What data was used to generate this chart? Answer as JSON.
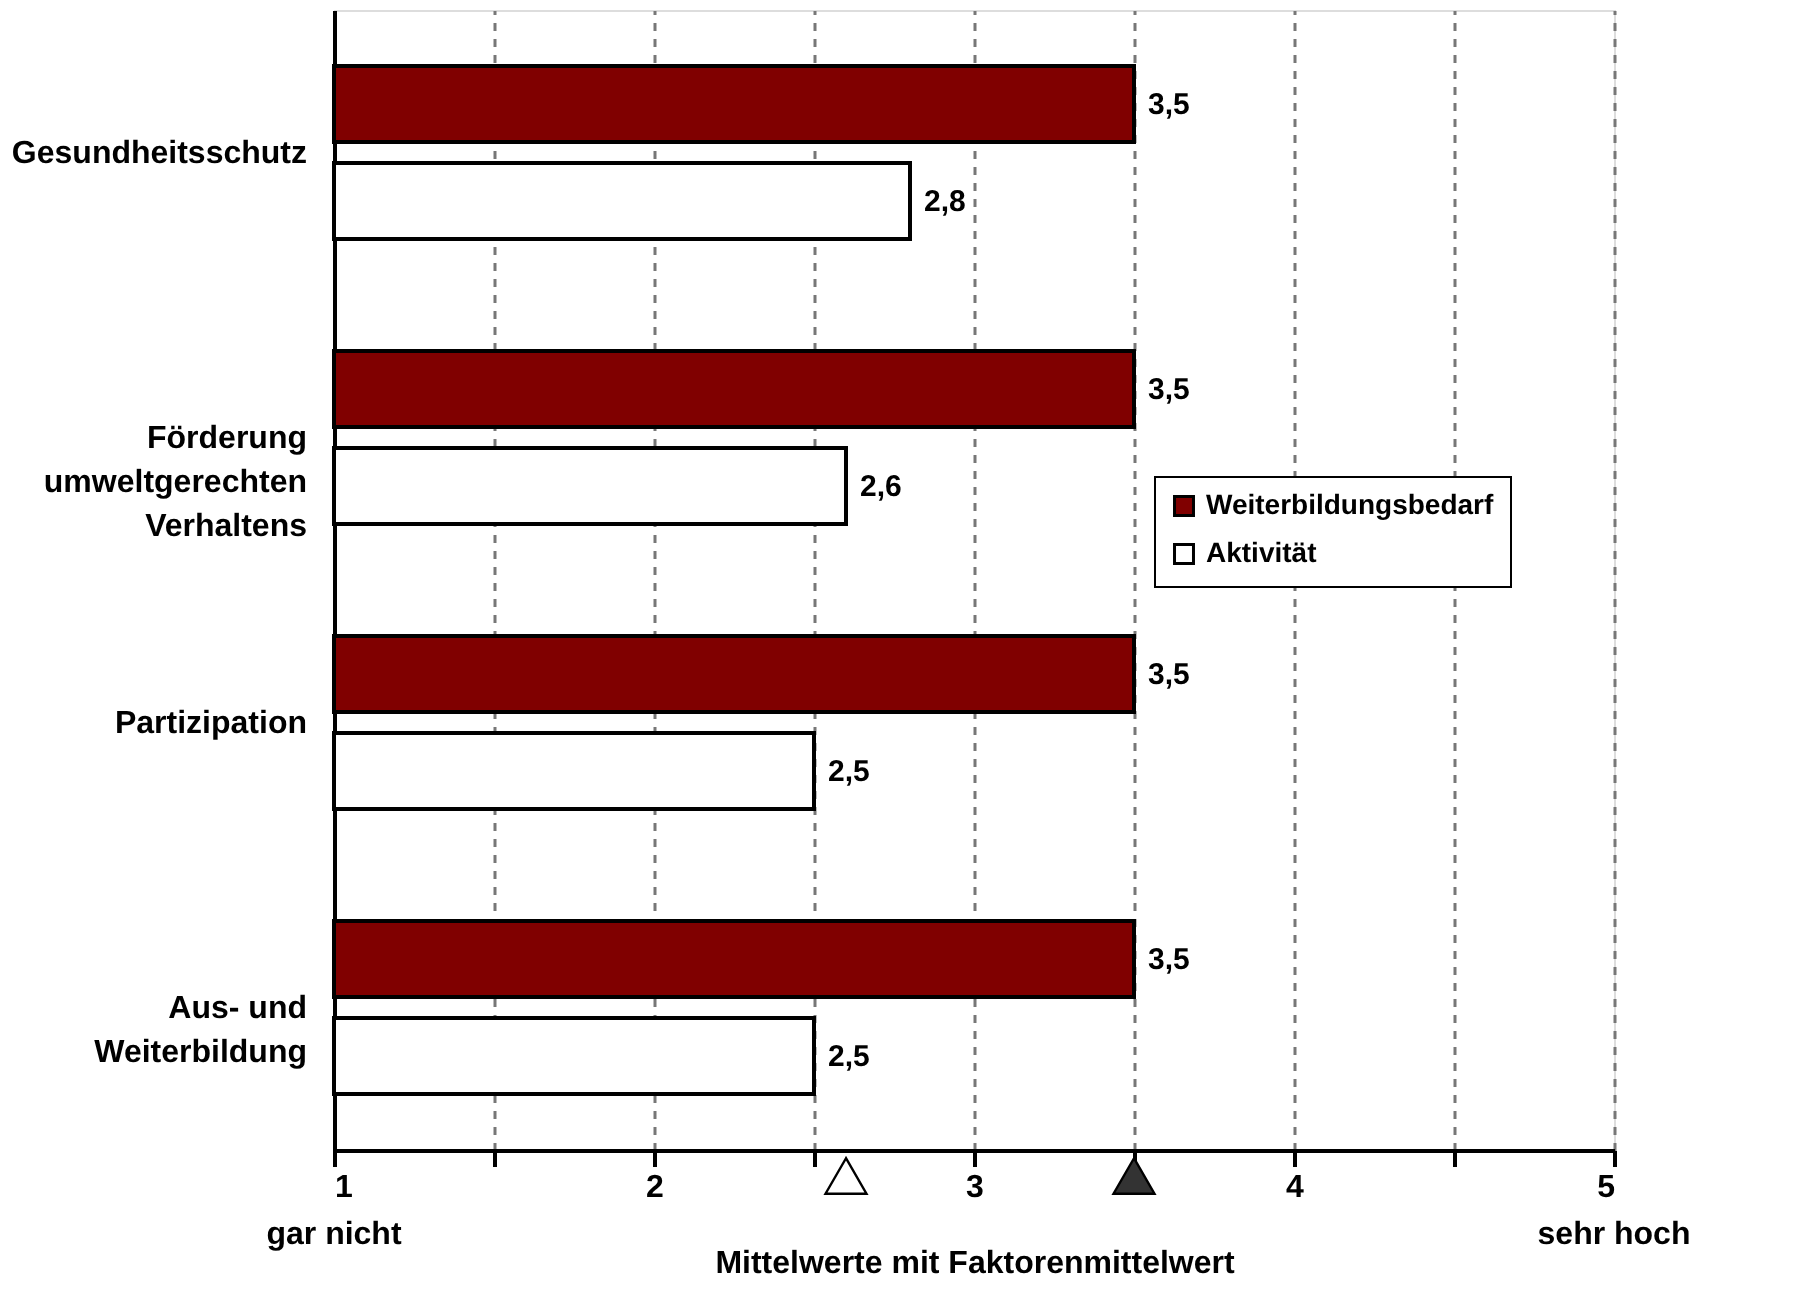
{
  "chart_data": {
    "type": "bar",
    "orientation": "horizontal",
    "xlabel": "Mittelwerte mit Faktorenmittelwert",
    "categories": [
      "Gesundheitsschutz",
      "Förderung umweltgerechten Verhaltens",
      "Partizipation",
      "Aus- und Weiterbildung"
    ],
    "series": [
      {
        "name": "Weiterbildungsbedarf",
        "color": "#800000",
        "values": [
          3.5,
          3.5,
          3.5,
          3.5
        ],
        "value_labels": [
          "3,5",
          "3,5",
          "3,5",
          "3,5"
        ]
      },
      {
        "name": "Aktivität",
        "color": "#ffffff",
        "values": [
          2.8,
          2.6,
          2.5,
          2.5
        ],
        "value_labels": [
          "2,8",
          "2,6",
          "2,5",
          "2,5"
        ]
      }
    ],
    "xlim": [
      1,
      5
    ],
    "xticks": [
      1,
      {
        "value": 1.5,
        "label": null
      },
      2,
      {
        "value": 2.5,
        "label": null
      },
      3,
      {
        "value": 3.5,
        "label": null
      },
      4,
      {
        "value": 4.5,
        "label": null
      },
      5
    ],
    "grid": "x",
    "legend": "right",
    "annotations": [
      "gar nicht",
      "sehr hoch"
    ]
  }
}
